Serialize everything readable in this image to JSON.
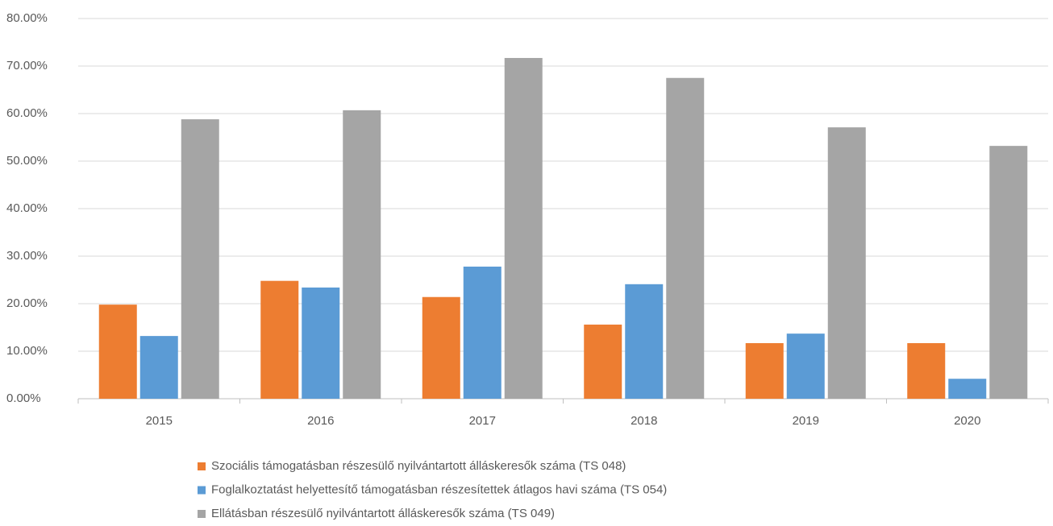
{
  "chart_data": {
    "type": "bar",
    "categories": [
      "2015",
      "2016",
      "2017",
      "2018",
      "2019",
      "2020"
    ],
    "series": [
      {
        "name": "Szociális támogatásban részesülő nyilvántartott álláskeresők száma (TS 048)",
        "color": "#ed7d31",
        "values": [
          19.8,
          24.8,
          21.4,
          15.6,
          11.7,
          11.7
        ]
      },
      {
        "name": "Foglalkoztatást helyettesítő támogatásban részesítettek átlagos havi száma (TS 054)",
        "color": "#5b9bd5",
        "values": [
          13.2,
          23.4,
          27.8,
          24.1,
          13.7,
          4.2
        ]
      },
      {
        "name": "Ellátásban részesülő nyilvántartott álláskeresők száma (TS 049)",
        "color": "#a5a5a5",
        "values": [
          58.8,
          60.7,
          71.7,
          67.5,
          57.1,
          53.2
        ]
      }
    ],
    "ylim": [
      0,
      80
    ],
    "yticks": [
      {
        "value": 0,
        "label": "0.00%"
      },
      {
        "value": 10,
        "label": "10.00%"
      },
      {
        "value": 20,
        "label": "20.00%"
      },
      {
        "value": 30,
        "label": "30.00%"
      },
      {
        "value": 40,
        "label": "40.00%"
      },
      {
        "value": 50,
        "label": "50.00%"
      },
      {
        "value": 60,
        "label": "60.00%"
      },
      {
        "value": 70,
        "label": "70.00%"
      },
      {
        "value": 80,
        "label": "80.00%"
      }
    ],
    "grid": true,
    "legend": "bottom"
  }
}
